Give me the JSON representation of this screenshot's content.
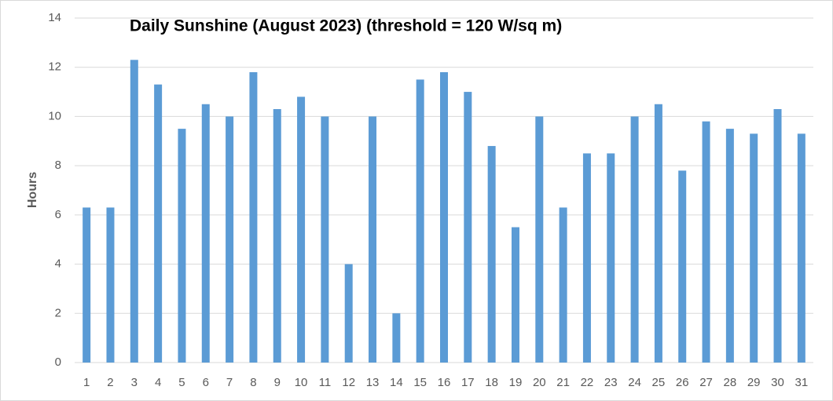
{
  "chart_data": {
    "type": "bar",
    "title": "Daily Sunshine (August 2023) (threshold = 120 W/sq m)",
    "y_label": "Hours",
    "categories": [
      "1",
      "2",
      "3",
      "4",
      "5",
      "6",
      "7",
      "8",
      "9",
      "10",
      "11",
      "12",
      "13",
      "14",
      "15",
      "16",
      "17",
      "18",
      "19",
      "20",
      "21",
      "22",
      "23",
      "24",
      "25",
      "26",
      "27",
      "28",
      "29",
      "30",
      "31"
    ],
    "values": [
      6.3,
      6.3,
      12.3,
      11.3,
      9.5,
      10.5,
      10,
      11.8,
      10.3,
      10.8,
      10,
      4,
      10,
      2,
      11.5,
      11.8,
      11,
      8.8,
      5.5,
      10,
      6.3,
      8.5,
      8.5,
      10,
      10.5,
      7.8,
      9.8,
      9.5,
      9.3,
      10.3,
      9.3
    ],
    "color": "#5b9bd5",
    "ylim": [
      0,
      14
    ],
    "yticks": [
      0,
      2,
      4,
      6,
      8,
      10,
      12,
      14
    ],
    "grid": true
  }
}
